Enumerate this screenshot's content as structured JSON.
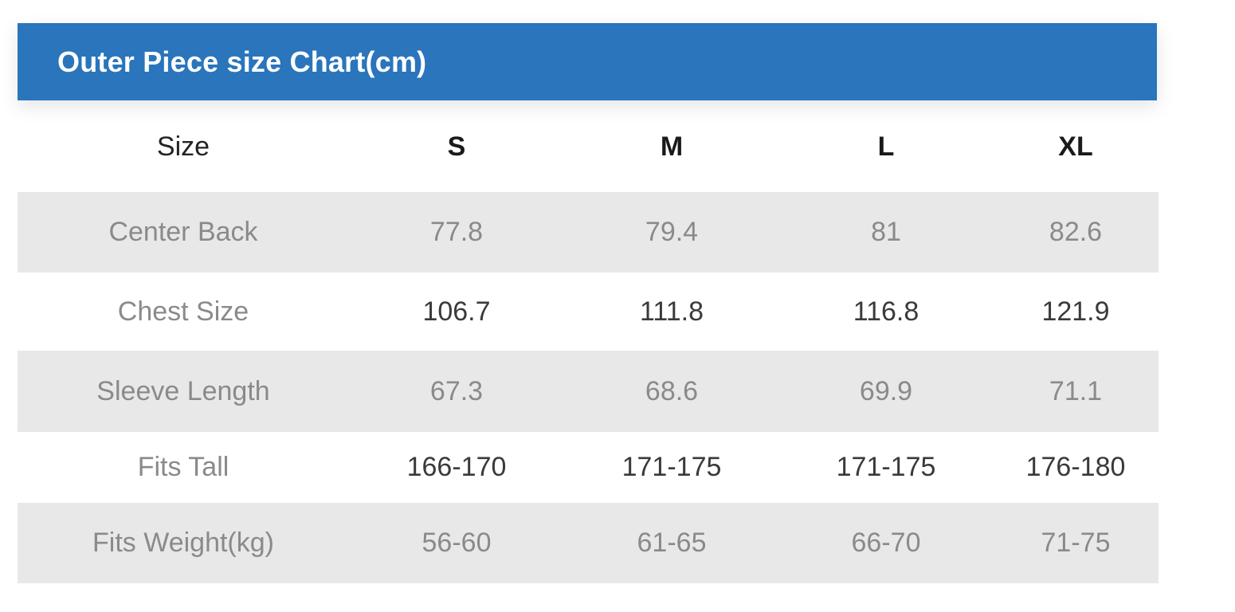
{
  "title": "Outer Piece size Chart(cm)",
  "colors": {
    "title_bar": "#2a75bb",
    "title_text": "#ffffff",
    "shaded_row": "#e8e8e8",
    "label_text": "#8a8a8a"
  },
  "chart_data": {
    "type": "table",
    "title": "Outer Piece size Chart(cm)",
    "columns": [
      "Size",
      "S",
      "M",
      "L",
      "XL"
    ],
    "rows": [
      [
        "Center Back",
        "77.8",
        "79.4",
        "81",
        "82.6"
      ],
      [
        "Chest Size",
        "106.7",
        "111.8",
        "116.8",
        "121.9"
      ],
      [
        "Sleeve Length",
        "67.3",
        "68.6",
        "69.9",
        "71.1"
      ],
      [
        "Fits Tall",
        "166-170",
        "171-175",
        "171-175",
        "176-180"
      ],
      [
        "Fits Weight(kg)",
        "56-60",
        "61-65",
        "66-70",
        "71-75"
      ]
    ]
  }
}
